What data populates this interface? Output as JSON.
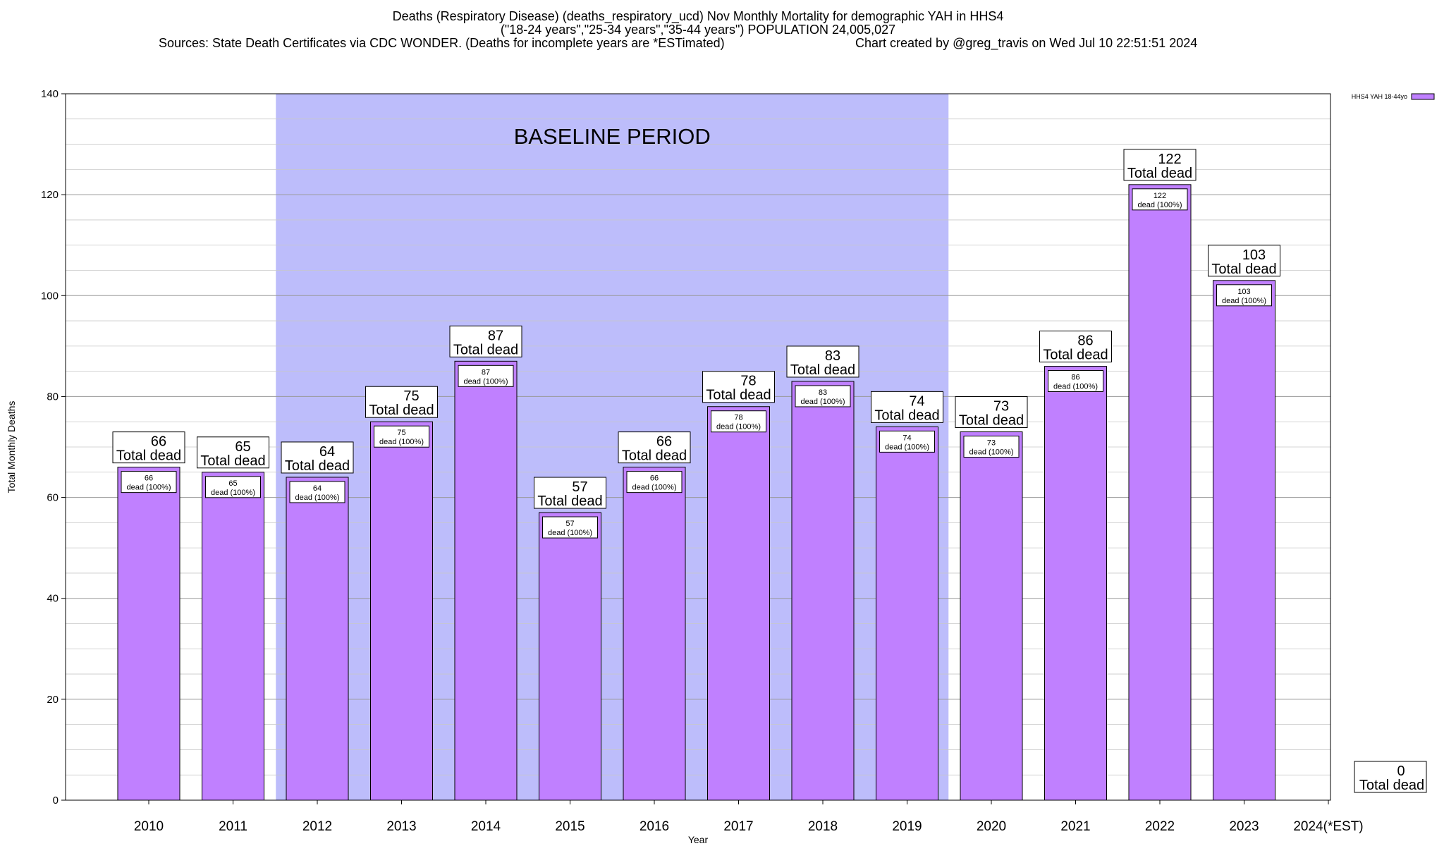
{
  "title": {
    "line1": "Deaths (Respiratory Disease) (deaths_respiratory_ucd) Nov Monthly Mortality for demographic YAH in HHS4",
    "line2": "(\"18-24 years\",\"25-34 years\",\"35-44 years\") POPULATION 24,005,027",
    "sources": "Sources: State Death Certificates via CDC WONDER. (Deaths for incomplete years are *ESTimated)",
    "credit": "Chart created by @greg_travis on Wed Jul 10 22:51:51 2024"
  },
  "colors": {
    "bar": "#c080ff",
    "baseline": "#bdbdfb",
    "grid": "#c8c8c8"
  },
  "chart_data": {
    "type": "bar",
    "xlabel": "Year",
    "ylabel": "Total Monthly Deaths",
    "ylim": [
      0,
      140
    ],
    "yticks": [
      "0",
      "20",
      "40",
      "60",
      "80",
      "100",
      "120",
      "140"
    ],
    "grid": true,
    "legend_position": "top-right",
    "categories": [
      "2010",
      "2011",
      "2012",
      "2013",
      "2014",
      "2015",
      "2016",
      "2017",
      "2018",
      "2019",
      "2020",
      "2021",
      "2022",
      "2023",
      "2024(*EST)"
    ],
    "series": [
      {
        "name": "HHS4 YAH 18-44yo",
        "values": [
          66,
          65,
          64,
          75,
          87,
          57,
          66,
          78,
          83,
          74,
          73,
          86,
          122,
          103,
          0
        ]
      }
    ],
    "total_label": "Total dead",
    "inner_label": "dead (100%)",
    "baseline_period": {
      "label": "BASELINE PERIOD",
      "start": "2012",
      "end": "2019"
    }
  }
}
